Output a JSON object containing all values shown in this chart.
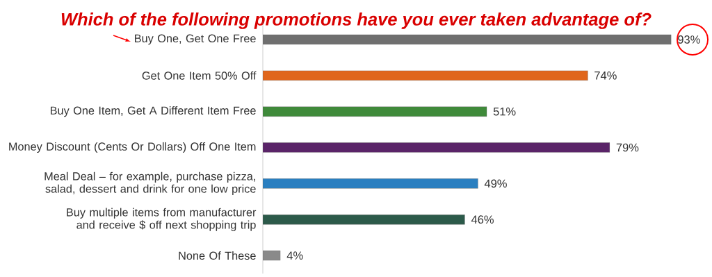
{
  "chart_data": {
    "type": "bar",
    "orientation": "horizontal",
    "title": "Which of the following promotions have you ever taken advantage of?",
    "categories": [
      "Buy One, Get One Free",
      "Get One Item 50% Off",
      "Buy One Item, Get A Different Item Free",
      "Money Discount (Cents Or Dollars) Off One Item",
      "Meal Deal – for example, purchase pizza, salad, dessert and drink for one low price",
      "Buy multiple items from manufacturer and receive $ off next shopping trip",
      "None Of These"
    ],
    "values": [
      93,
      74,
      51,
      79,
      49,
      46,
      4
    ],
    "value_labels": [
      "93%",
      "74%",
      "51%",
      "79%",
      "49%",
      "46%",
      "4%"
    ],
    "colors": [
      "#6f6f6f",
      "#e0661c",
      "#3f8a3a",
      "#5a2468",
      "#2a7fc0",
      "#2c5a4a",
      "#8a8a8a"
    ]
  }
}
